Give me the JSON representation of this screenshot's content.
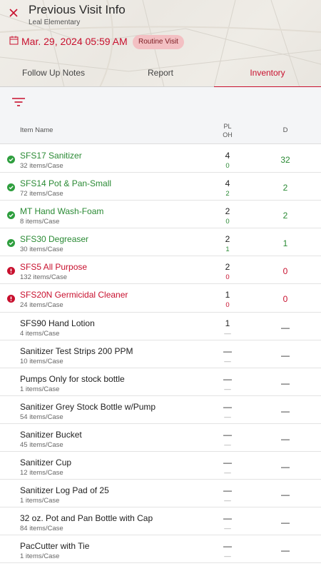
{
  "header": {
    "title": "Previous Visit Info",
    "subtitle": "Leal Elementary",
    "date": "Mar. 29, 2024 05:59 AM",
    "badge": "Routine Visit"
  },
  "tabs": [
    {
      "label": "Follow Up Notes",
      "active": false
    },
    {
      "label": "Report",
      "active": false
    },
    {
      "label": "Inventory",
      "active": true
    }
  ],
  "columns": {
    "name": "Item Name",
    "pl": "PL",
    "oh": "OH",
    "d": "D"
  },
  "colors": {
    "accent": "#c8102e",
    "ok": "#2e9e3e",
    "badge_bg": "#f3c0c3"
  },
  "items": [
    {
      "name": "SFS17 Sanitizer",
      "sub": "32 items/Case",
      "pl": "4",
      "oh": "0",
      "d": "32",
      "status": "ok"
    },
    {
      "name": "SFS14 Pot & Pan-Small",
      "sub": "72 items/Case",
      "pl": "4",
      "oh": "2",
      "d": "2",
      "status": "ok"
    },
    {
      "name": "MT Hand Wash-Foam",
      "sub": "8 items/Case",
      "pl": "2",
      "oh": "0",
      "d": "2",
      "status": "ok"
    },
    {
      "name": "SFS30 Degreaser",
      "sub": "30 items/Case",
      "pl": "2",
      "oh": "1",
      "d": "1",
      "status": "ok"
    },
    {
      "name": "SFS5 All Purpose",
      "sub": "132 items/Case",
      "pl": "2",
      "oh": "0",
      "d": "0",
      "status": "err"
    },
    {
      "name": "SFS20N Germicidal Cleaner",
      "sub": "24 items/Case",
      "pl": "1",
      "oh": "0",
      "d": "0",
      "status": "err"
    },
    {
      "name": "SFS90 Hand Lotion",
      "sub": "4 items/Case",
      "pl": "1",
      "oh": "—",
      "d": "—",
      "status": "none"
    },
    {
      "name": "Sanitizer Test Strips 200 PPM",
      "sub": "10 items/Case",
      "pl": "—",
      "oh": "—",
      "d": "—",
      "status": "none"
    },
    {
      "name": "Pumps Only for stock bottle",
      "sub": "1 items/Case",
      "pl": "—",
      "oh": "—",
      "d": "—",
      "status": "none"
    },
    {
      "name": "Sanitizer Grey Stock Bottle w/Pump",
      "sub": "54 items/Case",
      "pl": "—",
      "oh": "—",
      "d": "—",
      "status": "none"
    },
    {
      "name": "Sanitizer Bucket",
      "sub": "45 items/Case",
      "pl": "—",
      "oh": "—",
      "d": "—",
      "status": "none"
    },
    {
      "name": "Sanitizer Cup",
      "sub": "12 items/Case",
      "pl": "—",
      "oh": "—",
      "d": "—",
      "status": "none"
    },
    {
      "name": "Sanitizer Log Pad of 25",
      "sub": "1 items/Case",
      "pl": "—",
      "oh": "—",
      "d": "—",
      "status": "none"
    },
    {
      "name": "32 oz. Pot and Pan Bottle with Cap",
      "sub": "84 items/Case",
      "pl": "—",
      "oh": "—",
      "d": "—",
      "status": "none"
    },
    {
      "name": "PacCutter with Tie",
      "sub": "1 items/Case",
      "pl": "—",
      "oh": "—",
      "d": "—",
      "status": "none"
    }
  ]
}
